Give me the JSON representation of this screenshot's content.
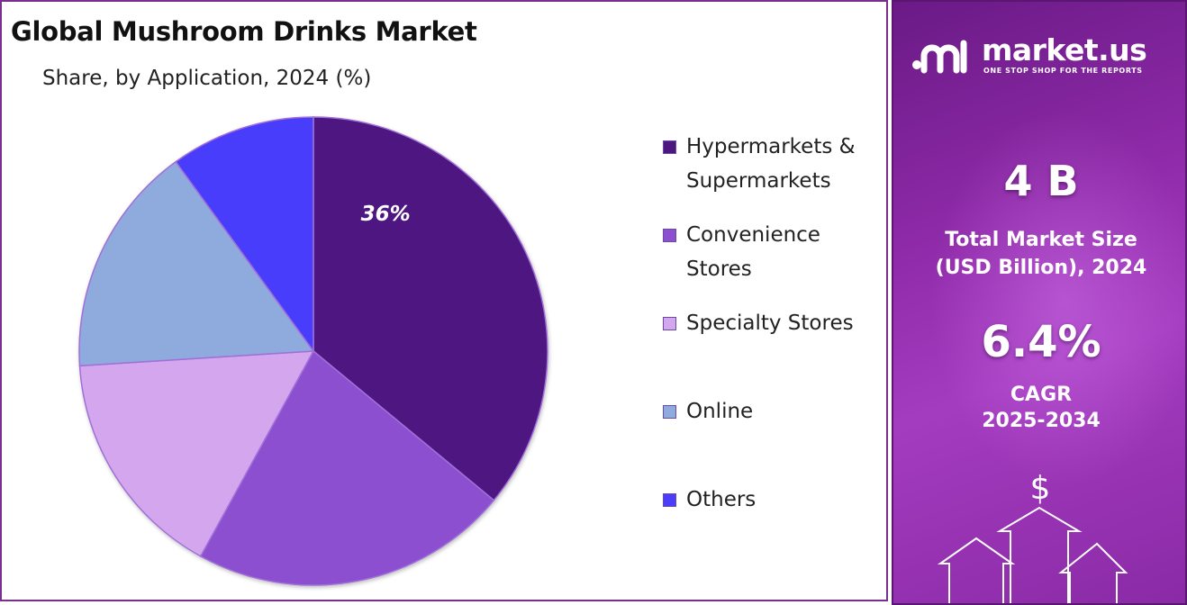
{
  "title": "Global Mushroom Drinks Market",
  "subtitle": "Share, by Application, 2024 (%)",
  "chart_data": {
    "type": "pie",
    "title": "Global Mushroom Drinks Market",
    "subtitle": "Share, by Application, 2024 (%)",
    "categories": [
      "Hypermarkets & Supermarkets",
      "Convenience Stores",
      "Specialty Stores",
      "Online",
      "Others"
    ],
    "values": [
      36,
      22,
      16,
      16,
      10
    ],
    "colors": [
      "#4e1680",
      "#8b4fd0",
      "#d4a6ee",
      "#8faadc",
      "#4a3dfc"
    ],
    "data_labels": [
      "36%",
      "",
      "",
      "",
      ""
    ],
    "legend_position": "right"
  },
  "legend": [
    {
      "line1": "Hypermarkets &",
      "line2": "Supermarkets",
      "color": "#4e1680"
    },
    {
      "line1": "Convenience",
      "line2": "Stores",
      "color": "#8b4fd0"
    },
    {
      "line1": "Specialty Stores",
      "line2": "",
      "color": "#d4a6ee"
    },
    {
      "line1": "Online",
      "line2": "",
      "color": "#8faadc"
    },
    {
      "line1": "Others",
      "line2": "",
      "color": "#4a3dfc"
    }
  ],
  "sidebar": {
    "brand_name": "market.us",
    "brand_tagline": "ONE STOP SHOP FOR THE REPORTS",
    "market_size_value": "4 B",
    "market_size_label_1": "Total Market Size",
    "market_size_label_2": "(USD Billion), 2024",
    "cagr_value": "6.4%",
    "cagr_label_1": "CAGR",
    "cagr_label_2": "2025-2034",
    "dollar_symbol": "$"
  }
}
